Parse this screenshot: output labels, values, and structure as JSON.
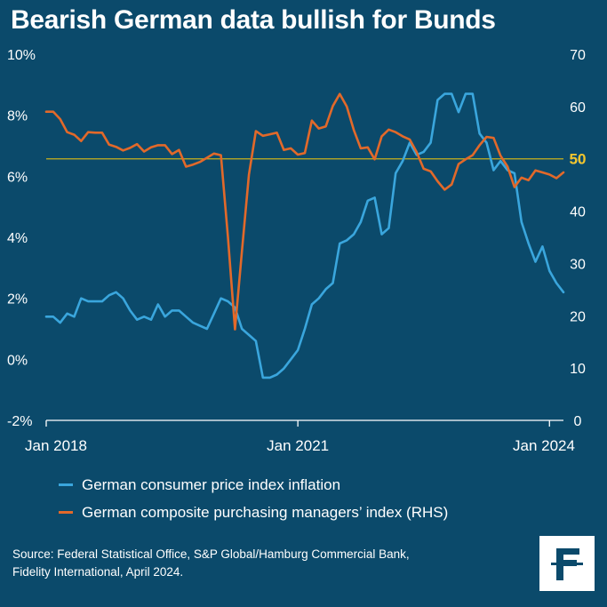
{
  "title": "Bearish German data bullish for Bunds",
  "legend": [
    {
      "label": "German consumer price index inflation",
      "color": "#3aa6dd"
    },
    {
      "label": "German composite purchasing managers’ index (RHS)",
      "color": "#e2692a"
    }
  ],
  "source_line1": "Source: Federal Statistical Office, S&P Global/Hamburg Commercial Bank,",
  "source_line2": "Fidelity International, April 2024.",
  "logo": {
    "icon": "fidelity-logo-icon",
    "color": "#0b4a6b"
  },
  "chart_data": {
    "type": "line",
    "title": "Bearish German data bullish for Bunds",
    "x_ticks": [
      "Jan 2018",
      "Jan 2021",
      "Jan 2024"
    ],
    "x_start": "2018-01",
    "x_end": "2024-03",
    "y_left": {
      "ticks": [
        "10%",
        "8%",
        "6%",
        "4%",
        "2%",
        "0%",
        "-2%"
      ],
      "lim": [
        -2,
        10
      ]
    },
    "y_right": {
      "ticks": [
        "70",
        "60",
        "50",
        "40",
        "30",
        "20",
        "10",
        "0"
      ],
      "lim": [
        0,
        70
      ]
    },
    "reference_line": {
      "axis": "right",
      "value": 50,
      "label": "50",
      "color": "#c9b21d"
    },
    "grid": false,
    "series": [
      {
        "name": "German consumer price index inflation",
        "axis": "left",
        "color": "#3aa6dd",
        "values": [
          1.4,
          1.4,
          1.2,
          1.5,
          1.4,
          2.0,
          1.9,
          1.9,
          1.9,
          2.1,
          2.2,
          2.0,
          1.6,
          1.3,
          1.4,
          1.3,
          1.8,
          1.4,
          1.6,
          1.6,
          1.4,
          1.2,
          1.1,
          1.0,
          1.5,
          2.0,
          1.9,
          1.7,
          1.0,
          0.8,
          0.6,
          -0.6,
          -0.6,
          -0.5,
          -0.3,
          0.0,
          0.3,
          1.0,
          1.8,
          2.0,
          2.3,
          2.5,
          3.8,
          3.9,
          4.1,
          4.5,
          5.2,
          5.3,
          4.1,
          4.3,
          6.1,
          6.5,
          7.1,
          6.7,
          6.8,
          7.1,
          8.5,
          8.7,
          8.7,
          8.1,
          8.7,
          8.7,
          7.4,
          7.1,
          6.2,
          6.5,
          6.2,
          6.1,
          4.5,
          3.8,
          3.2,
          3.7,
          2.9,
          2.5,
          2.2
        ]
      },
      {
        "name": "German composite purchasing managers’ index (RHS)",
        "axis": "right",
        "color": "#e2692a",
        "values": [
          59.0,
          59.0,
          57.6,
          55.1,
          54.6,
          53.4,
          55.1,
          55.0,
          55.0,
          52.7,
          52.3,
          51.6,
          52.1,
          52.8,
          51.4,
          52.2,
          52.6,
          52.6,
          50.9,
          51.7,
          48.5,
          48.9,
          49.4,
          50.2,
          51.0,
          50.7,
          35.0,
          17.4,
          32.3,
          47.0,
          55.3,
          54.4,
          54.7,
          55.0,
          51.7,
          52.0,
          50.8,
          51.1,
          57.3,
          55.8,
          56.2,
          60.1,
          62.4,
          60.0,
          55.5,
          52.0,
          52.2,
          49.9,
          54.3,
          55.6,
          55.1,
          54.3,
          53.7,
          51.3,
          48.1,
          47.6,
          45.7,
          44.1,
          45.1,
          49.0,
          49.9,
          50.7,
          52.6,
          54.2,
          54.0,
          50.6,
          48.5,
          44.6,
          46.4,
          45.9,
          47.8,
          47.4,
          47.0,
          46.3,
          47.4
        ]
      }
    ]
  }
}
